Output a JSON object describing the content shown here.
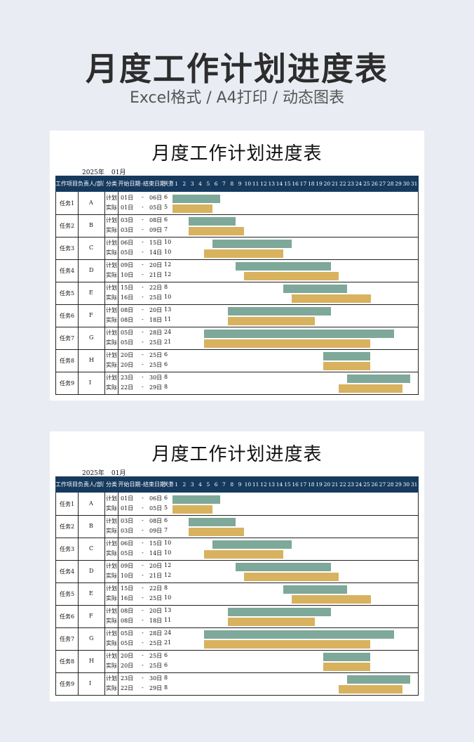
{
  "hero": {
    "title": "月度工作计划进度表",
    "subtitle": "Excel格式 / A4打印 / 动态图表"
  },
  "sheet": {
    "title": "月度工作计划进度表",
    "year": "2025年",
    "month": "01月",
    "headers": {
      "project": "工作项目",
      "owner": "负责人/部门",
      "category": "分类",
      "start": "开始日期",
      "dash": "-",
      "end": "结束日期",
      "days": "天数"
    },
    "day_numbers": [
      "1",
      "2",
      "3",
      "4",
      "5",
      "6",
      "7",
      "8",
      "9",
      "10",
      "11",
      "12",
      "13",
      "14",
      "15",
      "16",
      "17",
      "18",
      "19",
      "20",
      "21",
      "22",
      "23",
      "24",
      "25",
      "26",
      "27",
      "28",
      "29",
      "30",
      "31"
    ],
    "plan_label": "计划",
    "actual_label": "实际",
    "tasks": [
      {
        "name": "任务1",
        "owner": "A",
        "plan": {
          "start": "01日",
          "end": "06日",
          "days": "6",
          "s": 1,
          "e": 6
        },
        "actual": {
          "start": "01日",
          "end": "05日",
          "days": "5",
          "s": 1,
          "e": 5
        }
      },
      {
        "name": "任务2",
        "owner": "B",
        "plan": {
          "start": "03日",
          "end": "08日",
          "days": "6",
          "s": 3,
          "e": 8
        },
        "actual": {
          "start": "03日",
          "end": "09日",
          "days": "7",
          "s": 3,
          "e": 9
        }
      },
      {
        "name": "任务3",
        "owner": "C",
        "plan": {
          "start": "06日",
          "end": "15日",
          "days": "10",
          "s": 6,
          "e": 15
        },
        "actual": {
          "start": "05日",
          "end": "14日",
          "days": "10",
          "s": 5,
          "e": 14
        }
      },
      {
        "name": "任务4",
        "owner": "D",
        "plan": {
          "start": "09日",
          "end": "20日",
          "days": "12",
          "s": 9,
          "e": 20
        },
        "actual": {
          "start": "10日",
          "end": "21日",
          "days": "12",
          "s": 10,
          "e": 21
        }
      },
      {
        "name": "任务5",
        "owner": "E",
        "plan": {
          "start": "15日",
          "end": "22日",
          "days": "8",
          "s": 15,
          "e": 22
        },
        "actual": {
          "start": "16日",
          "end": "25日",
          "days": "10",
          "s": 16,
          "e": 25
        }
      },
      {
        "name": "任务6",
        "owner": "F",
        "plan": {
          "start": "08日",
          "end": "20日",
          "days": "13",
          "s": 8,
          "e": 20
        },
        "actual": {
          "start": "08日",
          "end": "18日",
          "days": "11",
          "s": 8,
          "e": 18
        }
      },
      {
        "name": "任务7",
        "owner": "G",
        "plan": {
          "start": "05日",
          "end": "28日",
          "days": "24",
          "s": 5,
          "e": 28
        },
        "actual": {
          "start": "05日",
          "end": "25日",
          "days": "21",
          "s": 5,
          "e": 25
        }
      },
      {
        "name": "任务8",
        "owner": "H",
        "plan": {
          "start": "20日",
          "end": "25日",
          "days": "6",
          "s": 20,
          "e": 25
        },
        "actual": {
          "start": "20日",
          "end": "25日",
          "days": "6",
          "s": 20,
          "e": 25
        }
      },
      {
        "name": "任务9",
        "owner": "I",
        "plan": {
          "start": "23日",
          "end": "30日",
          "days": "8",
          "s": 23,
          "e": 30
        },
        "actual": {
          "start": "22日",
          "end": "29日",
          "days": "8",
          "s": 22,
          "e": 29
        }
      }
    ],
    "colors": {
      "header": "#163a5e",
      "plan": "#7ea89a",
      "actual": "#d9b25f"
    }
  }
}
